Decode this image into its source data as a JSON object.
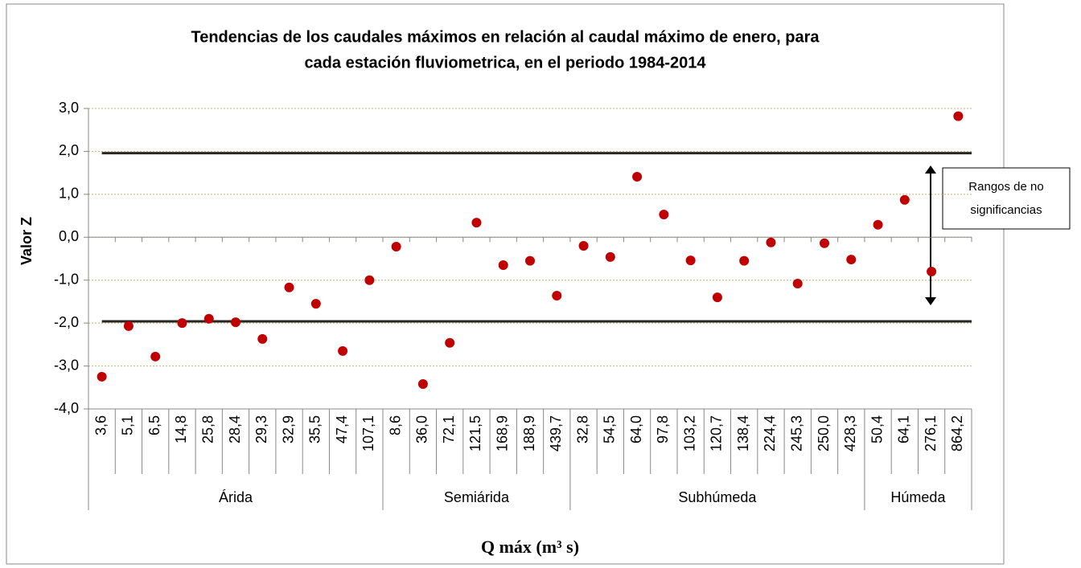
{
  "chart_data": {
    "type": "scatter",
    "title": [
      "Tendencias de los caudales máximos en relación al caudal máximo de enero, para",
      "cada estación fluviometrica, en el periodo 1984-2014"
    ],
    "x_label": "Q máx (m³ s)",
    "y_label": "Valor Z",
    "groups": [
      {
        "name": "Árida",
        "categories": [
          "3,6",
          "5,1",
          "6,5",
          "14,8",
          "25,8",
          "28,4",
          "29,3",
          "32,9",
          "35,5",
          "47,4",
          "107,1"
        ],
        "values": [
          -3.25,
          -2.07,
          -2.78,
          -2.0,
          -1.9,
          -1.98,
          -2.37,
          -1.17,
          -1.55,
          -2.65,
          -1.0
        ]
      },
      {
        "name": "Semiárida",
        "categories": [
          "8,6",
          "36,0",
          "72,1",
          "121,5",
          "168,9",
          "188,9",
          "439,7"
        ],
        "values": [
          -0.22,
          -3.42,
          -2.46,
          0.34,
          -0.65,
          -0.55,
          -1.36
        ]
      },
      {
        "name": "Subhúmeda",
        "categories": [
          "32,8",
          "54,5",
          "64,0",
          "97,8",
          "103,2",
          "120,7",
          "138,4",
          "224,4",
          "245,3",
          "250,0",
          "428,3"
        ],
        "values": [
          -0.2,
          -0.46,
          1.41,
          0.53,
          -0.54,
          -1.4,
          -0.55,
          -0.12,
          -1.08,
          -0.14,
          -0.52
        ]
      },
      {
        "name": "Húmeda",
        "categories": [
          "50,4",
          "64,1",
          "276,1",
          "864,2"
        ],
        "values": [
          0.29,
          0.87,
          -0.8,
          2.82
        ]
      }
    ],
    "color": "#c00000",
    "ylim": [
      -4,
      3
    ],
    "yticks": [
      {
        "value": -4,
        "label": "-4,0"
      },
      {
        "value": -3,
        "label": "-3,0"
      },
      {
        "value": -2,
        "label": "-2,0"
      },
      {
        "value": -1,
        "label": "-1,0"
      },
      {
        "value": 0,
        "label": "0,0"
      },
      {
        "value": 1,
        "label": "1,0"
      },
      {
        "value": 2,
        "label": "2,0"
      },
      {
        "value": 3,
        "label": "3,0"
      }
    ],
    "grid": true,
    "reference_lines": [
      1.96,
      -1.96
    ],
    "reference_color": "#262626",
    "annotation": [
      "Rangos de no",
      "significancias"
    ]
  }
}
